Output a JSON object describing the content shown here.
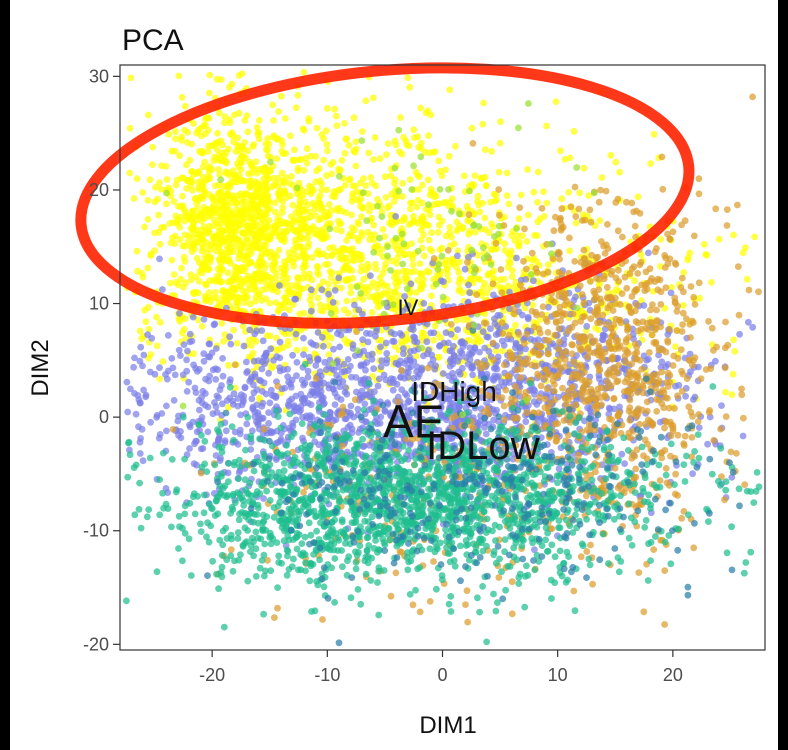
{
  "chart_data": {
    "type": "scatter",
    "title": "PCA",
    "xlabel": "DIM1",
    "ylabel": "DIM2",
    "xlim": [
      -28,
      28
    ],
    "ylim": [
      -20.5,
      31
    ],
    "xticks": [
      -20,
      -10,
      0,
      10,
      20
    ],
    "yticks": [
      -20,
      -10,
      0,
      10,
      20,
      30
    ],
    "xtick_labels": [
      "-20",
      "-10",
      "0",
      "10",
      "20"
    ],
    "ytick_labels": [
      "-20",
      "-10",
      "0",
      "10",
      "20",
      "30"
    ],
    "grid": false,
    "legend": "none",
    "series": [
      {
        "color": "#FFFF00",
        "clusters": [
          {
            "cx": -18,
            "cy": 17,
            "sx": 3.5,
            "sy": 5,
            "n": 900
          },
          {
            "cx": -6,
            "cy": 15,
            "sx": 10,
            "sy": 6,
            "n": 1100
          },
          {
            "cx": 2,
            "cy": 10,
            "sx": 12,
            "sy": 4,
            "n": 500
          }
        ]
      },
      {
        "color": "#7B7FE8",
        "clusters": [
          {
            "cx": -6,
            "cy": 1,
            "sx": 12,
            "sy": 4,
            "n": 1300
          },
          {
            "cx": 8,
            "cy": 3,
            "sx": 8,
            "sy": 5,
            "n": 500
          }
        ]
      },
      {
        "color": "#DB9E2E",
        "clusters": [
          {
            "cx": 14,
            "cy": 5,
            "sx": 5,
            "sy": 7,
            "n": 900
          },
          {
            "cx": 0,
            "cy": -7,
            "sx": 10,
            "sy": 5,
            "n": 250
          }
        ]
      },
      {
        "color": "#1FBE8F",
        "clusters": [
          {
            "cx": -2,
            "cy": -7,
            "sx": 11,
            "sy": 3.5,
            "n": 1600
          },
          {
            "cx": -12,
            "cy": -11,
            "sx": 4,
            "sy": 3,
            "n": 150
          }
        ]
      },
      {
        "color": "#2A7FA8",
        "clusters": [
          {
            "cx": 3,
            "cy": -6,
            "sx": 10,
            "sy": 4,
            "n": 350
          }
        ]
      },
      {
        "color": "#9BE02E",
        "clusters": [
          {
            "cx": 0,
            "cy": 14,
            "sx": 8,
            "sy": 6,
            "n": 80
          }
        ]
      }
    ],
    "point_labels": [
      {
        "text": "IV",
        "x": -3,
        "y": 9,
        "size": 22
      },
      {
        "text": "IDHigh",
        "x": 1,
        "y": 1.4,
        "size": 28
      },
      {
        "text": "AE",
        "x": -2.5,
        "y": -1.8,
        "size": 46
      },
      {
        "text": "IDLow",
        "x": 3.5,
        "y": -3.7,
        "size": 40
      }
    ],
    "annotation": {
      "shape": "ellipse",
      "color": "#FF2200",
      "cx": -5,
      "cy": 19.5,
      "rx": 26.5,
      "ry": 11,
      "rotation_deg": -5.5
    }
  }
}
